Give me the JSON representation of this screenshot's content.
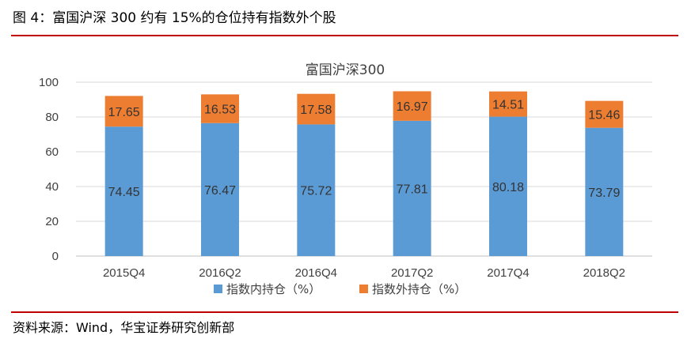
{
  "figure": {
    "title": "图 4：富国沪深 300 约有 15%的仓位持有指数外个股",
    "source": "资料来源：Wind，华宝证券研究创新部"
  },
  "colors": {
    "rule": "#c00000",
    "series_in": "#5b9bd5",
    "series_out": "#ed7d31"
  },
  "chart_data": {
    "type": "bar",
    "stacked": true,
    "title": "富国沪深300",
    "categories": [
      "2015Q4",
      "2016Q2",
      "2016Q4",
      "2017Q2",
      "2017Q4",
      "2018Q2"
    ],
    "series": [
      {
        "name": "指数内持仓（%）",
        "values": [
          74.45,
          76.47,
          75.72,
          77.81,
          80.18,
          73.79
        ],
        "color": "#5b9bd5"
      },
      {
        "name": "指数外持仓（%）",
        "values": [
          17.65,
          16.53,
          17.58,
          16.97,
          14.51,
          15.46
        ],
        "color": "#ed7d31"
      }
    ],
    "yticks": [
      0,
      20,
      40,
      60,
      80,
      100
    ],
    "ylim": [
      0,
      100
    ],
    "grid": true,
    "legend": "bottom",
    "data_labels": true
  }
}
